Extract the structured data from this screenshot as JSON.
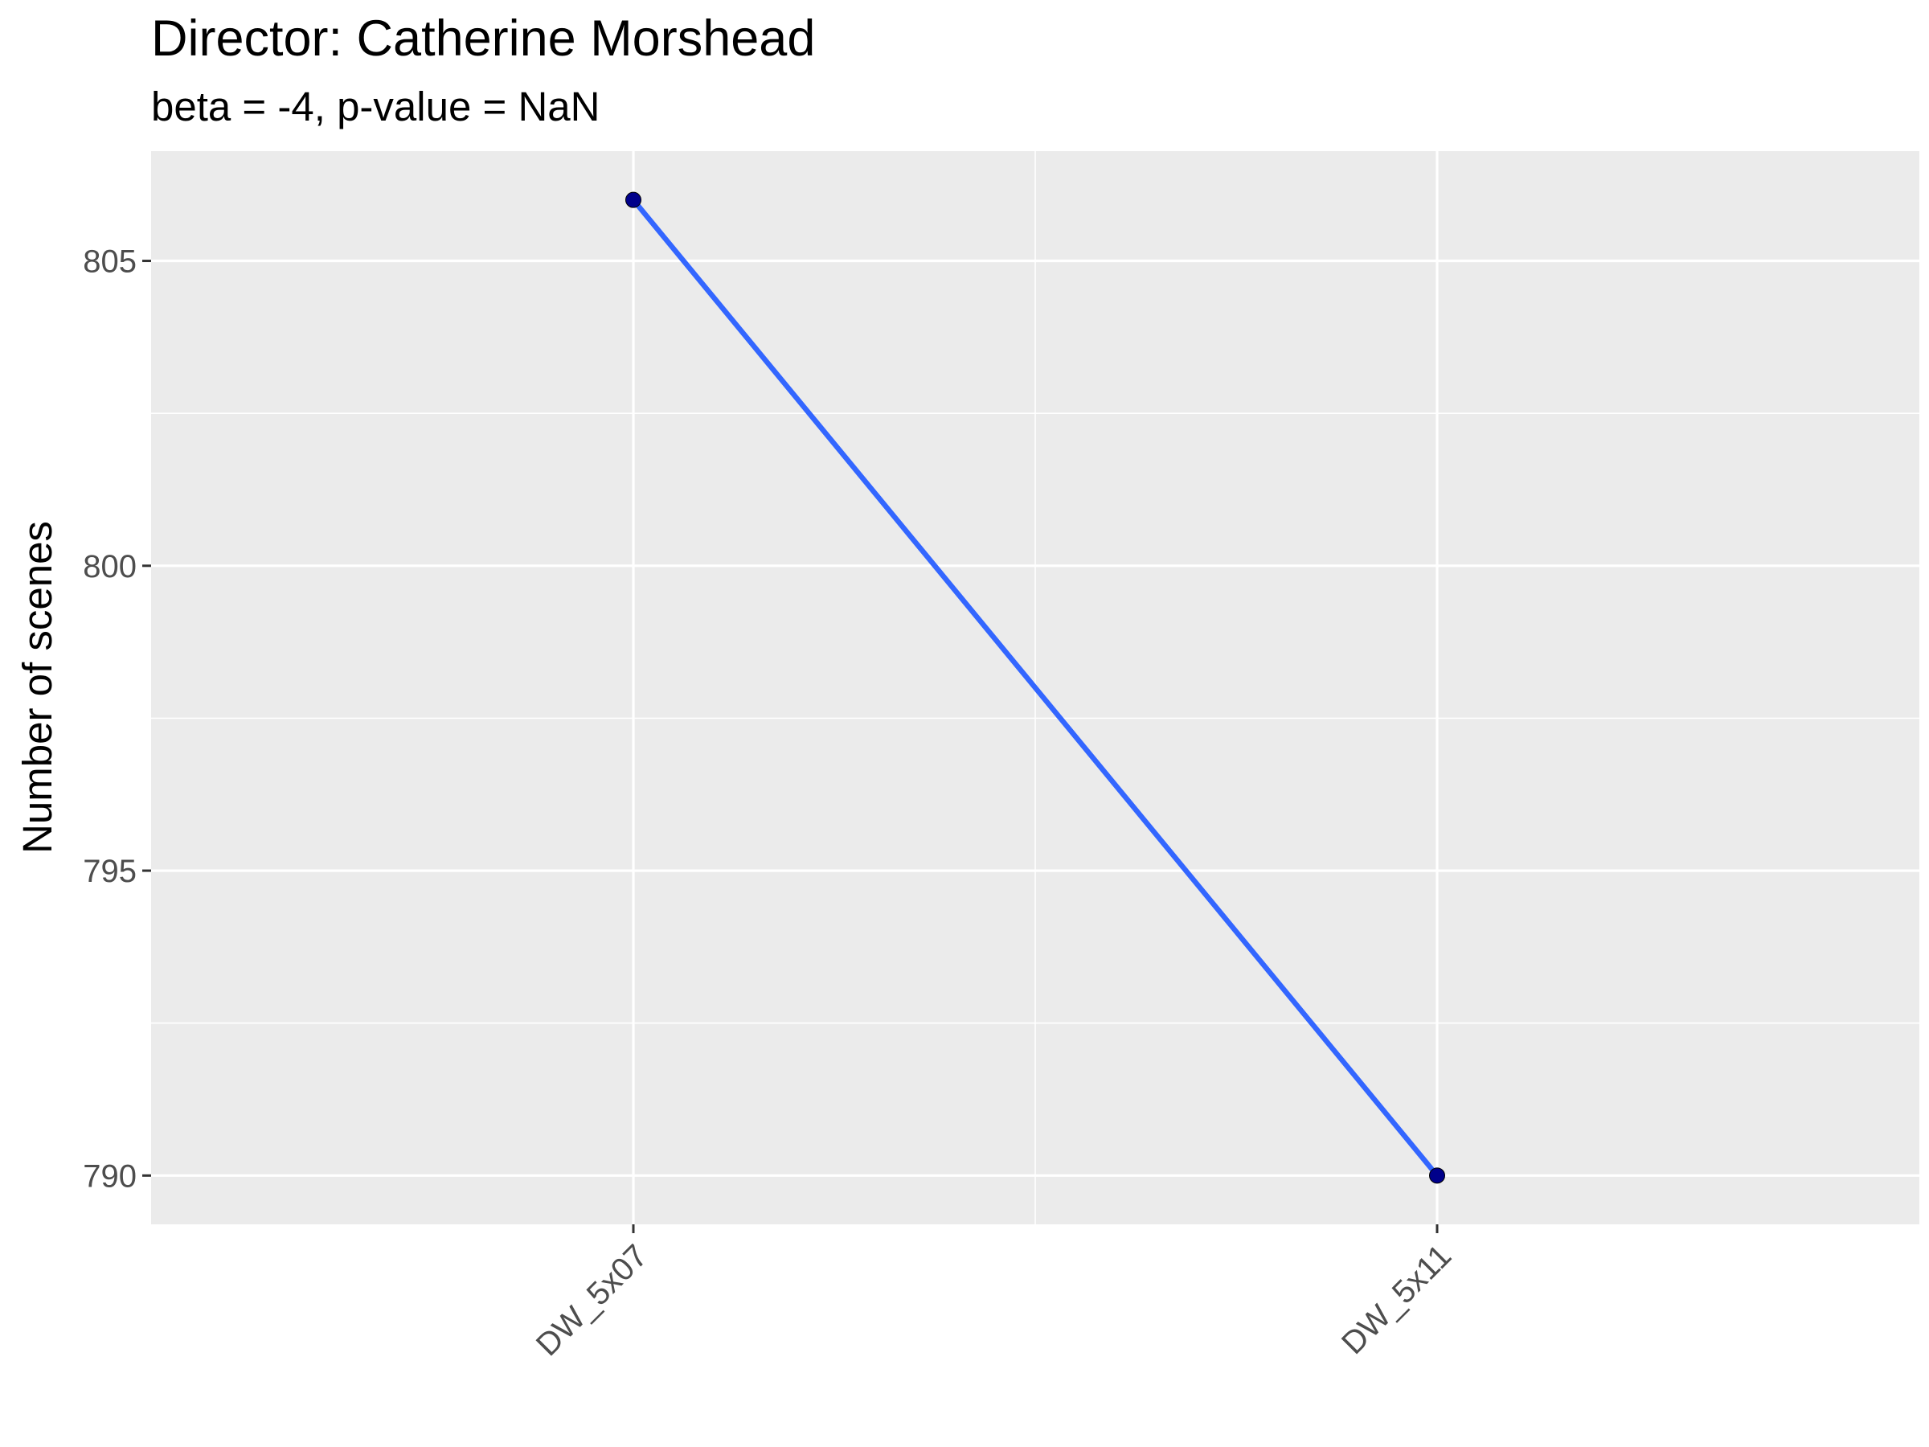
{
  "chart_data": {
    "type": "line",
    "title": "Director: Catherine Morshead",
    "subtitle": "beta = -4, p-value = NaN",
    "xlabel": "",
    "ylabel": "Number of scenes",
    "categories": [
      "DW_5x07",
      "DW_5x11"
    ],
    "series": [
      {
        "values": [
          806,
          790
        ],
        "line_color": "#3366ff",
        "point_color": "#00008b"
      }
    ],
    "ylim": [
      789.2,
      806.8
    ],
    "y_ticks": [
      790,
      795,
      800,
      805
    ],
    "grid": true,
    "legend": "none",
    "panel_background": "#ebebeb",
    "grid_color": "#ffffff"
  }
}
